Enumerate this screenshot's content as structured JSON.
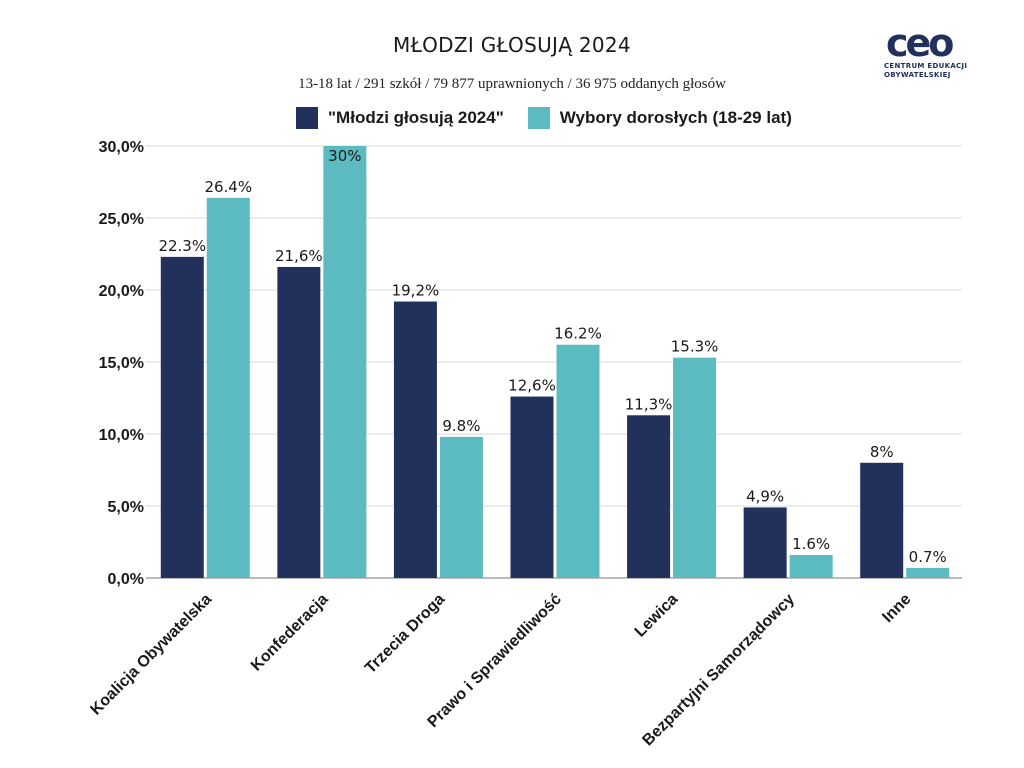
{
  "chart_data": {
    "type": "bar",
    "title": "MŁODZI GŁOSUJĄ 2024",
    "subtitle": "13-18 lat / 291 szkół / 79 877 uprawnionych / 36 975 oddanych głosów",
    "categories": [
      "Koalicja Obywatelska",
      "Konfederacja",
      "Trzecia Droga",
      "Prawo i Sprawiedliwość",
      "Lewica",
      "Bezpartyjni Samorządowcy",
      "Inne"
    ],
    "series": [
      {
        "name": "\"Młodzi głosują 2024\"",
        "color": "#22315c",
        "values": [
          22.3,
          21.6,
          19.2,
          12.6,
          11.3,
          4.9,
          8
        ],
        "labels": [
          "22.3%",
          "21,6%",
          "19,2%",
          "12,6%",
          "11,3%",
          "4,9%",
          "8%"
        ]
      },
      {
        "name": "Wybory dorosłych (18-29 lat)",
        "color": "#5bbbc0",
        "values": [
          26.4,
          30,
          9.8,
          16.2,
          15.3,
          1.6,
          0.7
        ],
        "labels": [
          "26.4%",
          "30%",
          "9.8%",
          "16.2%",
          "15.3%",
          "1.6%",
          "0.7%"
        ]
      }
    ],
    "ylim": [
      0,
      30
    ],
    "yticks": [
      0,
      5,
      10,
      15,
      20,
      25,
      30
    ],
    "ytick_labels": [
      "0,0%",
      "5,0%",
      "10,0%",
      "15,0%",
      "20,0%",
      "25,0%",
      "30,0%"
    ],
    "xlabel": "",
    "ylabel": "",
    "grid": true,
    "legend_position": "top-center"
  },
  "logo": {
    "mark": "ceo",
    "line1": "CENTRUM EDUKACJI",
    "line2": "OBYWATELSKIEJ"
  }
}
